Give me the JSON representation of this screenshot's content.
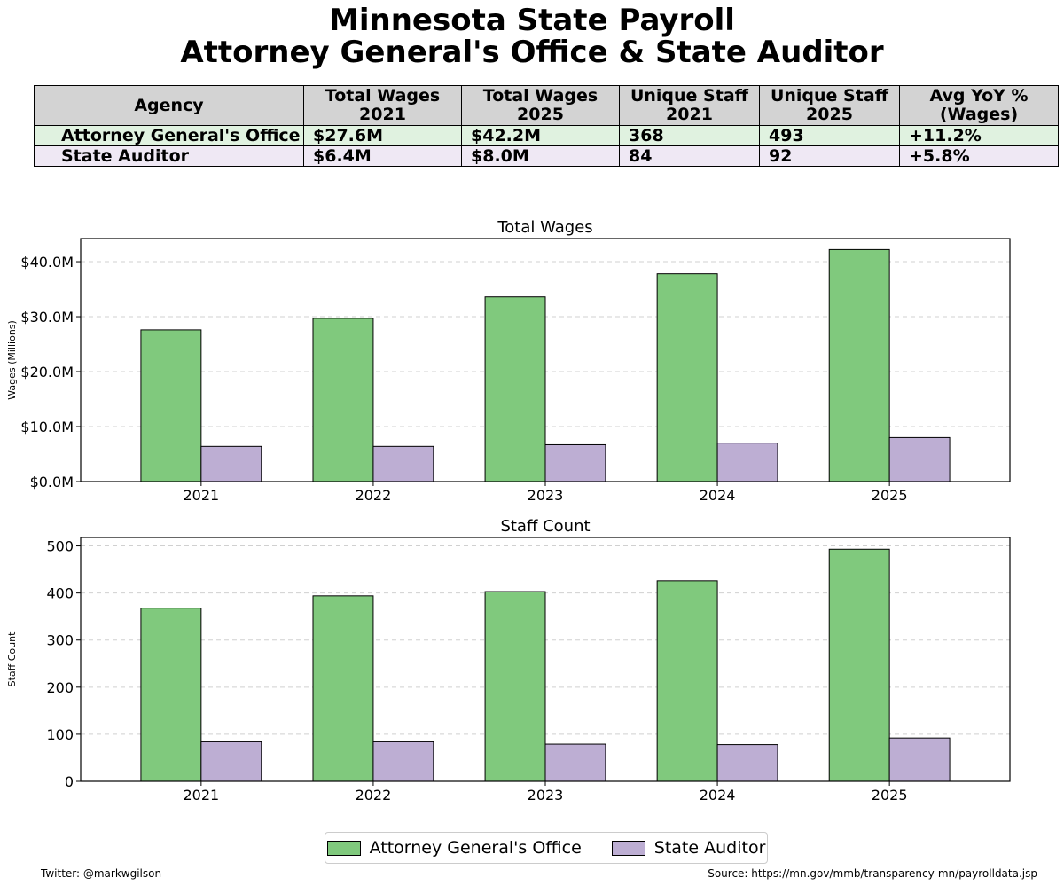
{
  "title_line1": "Minnesota State Payroll",
  "title_line2": "Attorney General's Office & State Auditor",
  "summary_table": {
    "headers": [
      "Agency",
      "Total Wages\n2021",
      "Total Wages\n2025",
      "Unique Staff\n2021",
      "Unique Staff\n2025",
      "Avg YoY %\n(Wages)"
    ],
    "rows": [
      [
        "Attorney General's Office",
        "$27.6M",
        "$42.2M",
        "368",
        "493",
        "+11.2%"
      ],
      [
        "State Auditor",
        "$6.4M",
        "$8.0M",
        "84",
        "92",
        "+5.8%"
      ]
    ],
    "row_colors": [
      "#e0f2e0",
      "#efe8f4"
    ]
  },
  "chart_data": [
    {
      "type": "bar",
      "title": "Total Wages",
      "ylabel": "Wages (Millions)",
      "xlabel": "",
      "categories": [
        "2021",
        "2022",
        "2023",
        "2024",
        "2025"
      ],
      "series": [
        {
          "name": "Attorney General's Office",
          "values": [
            27.6,
            29.7,
            33.6,
            37.8,
            42.2
          ],
          "color": "#80c97d"
        },
        {
          "name": "State Auditor",
          "values": [
            6.4,
            6.4,
            6.7,
            7.0,
            8.0
          ],
          "color": "#bdaed3"
        }
      ],
      "ylim": [
        0,
        44.2
      ],
      "yticks": [
        0,
        10,
        20,
        30,
        40
      ],
      "ytick_labels": [
        "$0.0M",
        "$10.0M",
        "$20.0M",
        "$30.0M",
        "$40.0M"
      ],
      "grid": "y dashed"
    },
    {
      "type": "bar",
      "title": "Staff Count",
      "ylabel": "Staff Count",
      "xlabel": "",
      "categories": [
        "2021",
        "2022",
        "2023",
        "2024",
        "2025"
      ],
      "series": [
        {
          "name": "Attorney General's Office",
          "values": [
            368,
            394,
            403,
            426,
            493
          ],
          "color": "#80c97d"
        },
        {
          "name": "State Auditor",
          "values": [
            84,
            84,
            79,
            78,
            92
          ],
          "color": "#bdaed3"
        }
      ],
      "ylim": [
        0,
        518
      ],
      "yticks": [
        0,
        100,
        200,
        300,
        400,
        500
      ],
      "ytick_labels": [
        "0",
        "100",
        "200",
        "300",
        "400",
        "500"
      ],
      "grid": "y dashed"
    }
  ],
  "legend": {
    "position": "bottom-center",
    "items": [
      {
        "label": "Attorney General's Office",
        "color": "#80c97d"
      },
      {
        "label": "State Auditor",
        "color": "#bdaed3"
      }
    ]
  },
  "footer": {
    "left": "Twitter: @markwgilson",
    "right": "Source: https://mn.gov/mmb/transparency-mn/payrolldata.jsp"
  }
}
